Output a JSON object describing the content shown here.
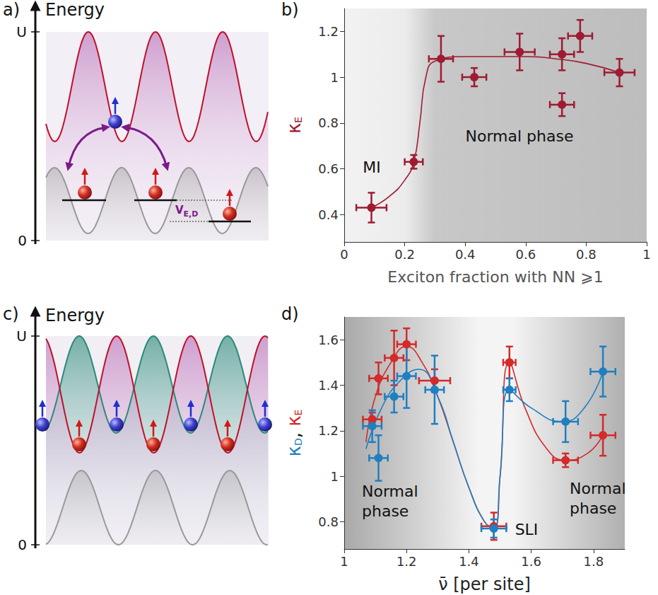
{
  "diagrams": {
    "a": {
      "panel": "a)",
      "axis_label": "Energy",
      "axis_ticks": [
        "U",
        "0"
      ],
      "annotation": {
        "text": "V",
        "subscript": "E,D"
      }
    },
    "c": {
      "panel": "c)",
      "axis_label": "Energy",
      "axis_ticks": [
        "U",
        "0"
      ]
    }
  },
  "chart_data": [
    {
      "panel": "b)",
      "type": "scatter",
      "xlabel": "Exciton fraction with NN ⩾1",
      "ylabel": [
        {
          "text": "κ",
          "subscript": "E",
          "color": "#9e1b32"
        }
      ],
      "xlim": [
        0,
        1
      ],
      "xticks": [
        0,
        0.2,
        0.4,
        0.6,
        0.8,
        1
      ],
      "ylim": [
        0.28,
        1.3
      ],
      "yticks": [
        0.4,
        0.6,
        0.8,
        1,
        1.2
      ],
      "grid": false,
      "annotations": [
        "MI",
        "Normal phase"
      ],
      "series": [
        {
          "color": "#9e1b32",
          "marker": "circle",
          "x": [
            0.09,
            0.23,
            0.32,
            0.43,
            0.58,
            0.72,
            0.72,
            0.78,
            0.91
          ],
          "values": [
            0.43,
            0.63,
            1.08,
            1.0,
            1.11,
            1.1,
            0.88,
            1.18,
            1.02
          ],
          "x_err": [
            0.05,
            0.03,
            0.04,
            0.04,
            0.05,
            0.04,
            0.04,
            0.04,
            0.05
          ],
          "y_err": [
            0.065,
            0.03,
            0.1,
            0.04,
            0.08,
            0.07,
            0.05,
            0.07,
            0.06
          ],
          "fit": {
            "line_style": "solid",
            "x": [
              0.09,
              0.15,
              0.2,
              0.23,
              0.25,
              0.27,
              0.3,
              0.4,
              0.5,
              0.6,
              0.7,
              0.8,
              0.91
            ],
            "values": [
              0.43,
              0.48,
              0.55,
              0.63,
              0.8,
              1.0,
              1.07,
              1.09,
              1.09,
              1.09,
              1.08,
              1.06,
              1.02
            ]
          }
        }
      ]
    },
    {
      "panel": "d)",
      "type": "scatter",
      "xlabel": "ν̄ [per site]",
      "ylabel": [
        {
          "text": "κ",
          "subscript": "D",
          "color": "#1f7fc0"
        },
        {
          "text": ", "
        },
        {
          "text": "κ",
          "subscript": "E",
          "color": "#d42a2a"
        }
      ],
      "xlim": [
        1,
        1.9
      ],
      "xticks": [
        1,
        1.2,
        1.4,
        1.6,
        1.8
      ],
      "ylim": [
        0.68,
        1.7
      ],
      "yticks": [
        0.8,
        1,
        1.2,
        1.4,
        1.6
      ],
      "grid": false,
      "annotations": [
        "Normal phase",
        "SLI",
        "Normal phase"
      ],
      "series": [
        {
          "color": "#d42a2a",
          "marker": "circle",
          "x": [
            1.09,
            1.11,
            1.16,
            1.2,
            1.29,
            1.48,
            1.53,
            1.71,
            1.83
          ],
          "values": [
            1.25,
            1.43,
            1.52,
            1.58,
            1.42,
            0.78,
            1.5,
            1.07,
            1.18
          ],
          "x_err": [
            0.03,
            0.03,
            0.03,
            0.03,
            0.05,
            0.04,
            0.02,
            0.04,
            0.04
          ],
          "y_err": [
            0.03,
            0.07,
            0.12,
            0.07,
            0.05,
            0.06,
            0.07,
            0.03,
            0.09
          ],
          "fit": {
            "line_style": "solid",
            "x": [
              1.07,
              1.1,
              1.15,
              1.2,
              1.25,
              1.3,
              1.35,
              1.4,
              1.45,
              1.48,
              1.5,
              1.53,
              1.58,
              1.65,
              1.71,
              1.78,
              1.83
            ],
            "values": [
              1.15,
              1.35,
              1.5,
              1.57,
              1.5,
              1.35,
              1.15,
              0.95,
              0.8,
              0.77,
              1.0,
              1.5,
              1.3,
              1.12,
              1.07,
              1.1,
              1.18
            ]
          }
        },
        {
          "color": "#1f7fc0",
          "marker": "circle",
          "x": [
            1.09,
            1.11,
            1.16,
            1.2,
            1.29,
            1.48,
            1.53,
            1.71,
            1.83
          ],
          "values": [
            1.22,
            1.08,
            1.35,
            1.44,
            1.38,
            0.77,
            1.38,
            1.24,
            1.46
          ],
          "x_err": [
            0.03,
            0.03,
            0.03,
            0.03,
            0.03,
            0.04,
            0.02,
            0.04,
            0.04
          ],
          "y_err": [
            0.07,
            0.1,
            0.07,
            0.14,
            0.15,
            0.04,
            0.05,
            0.09,
            0.11
          ],
          "fit": {
            "line_style": "solid",
            "x": [
              1.07,
              1.12,
              1.18,
              1.24,
              1.3,
              1.35,
              1.4,
              1.45,
              1.48,
              1.5,
              1.53,
              1.6,
              1.7,
              1.77,
              1.83
            ],
            "values": [
              1.12,
              1.3,
              1.42,
              1.47,
              1.35,
              1.15,
              0.95,
              0.8,
              0.77,
              1.0,
              1.38,
              1.3,
              1.24,
              1.3,
              1.46
            ]
          }
        }
      ]
    }
  ]
}
